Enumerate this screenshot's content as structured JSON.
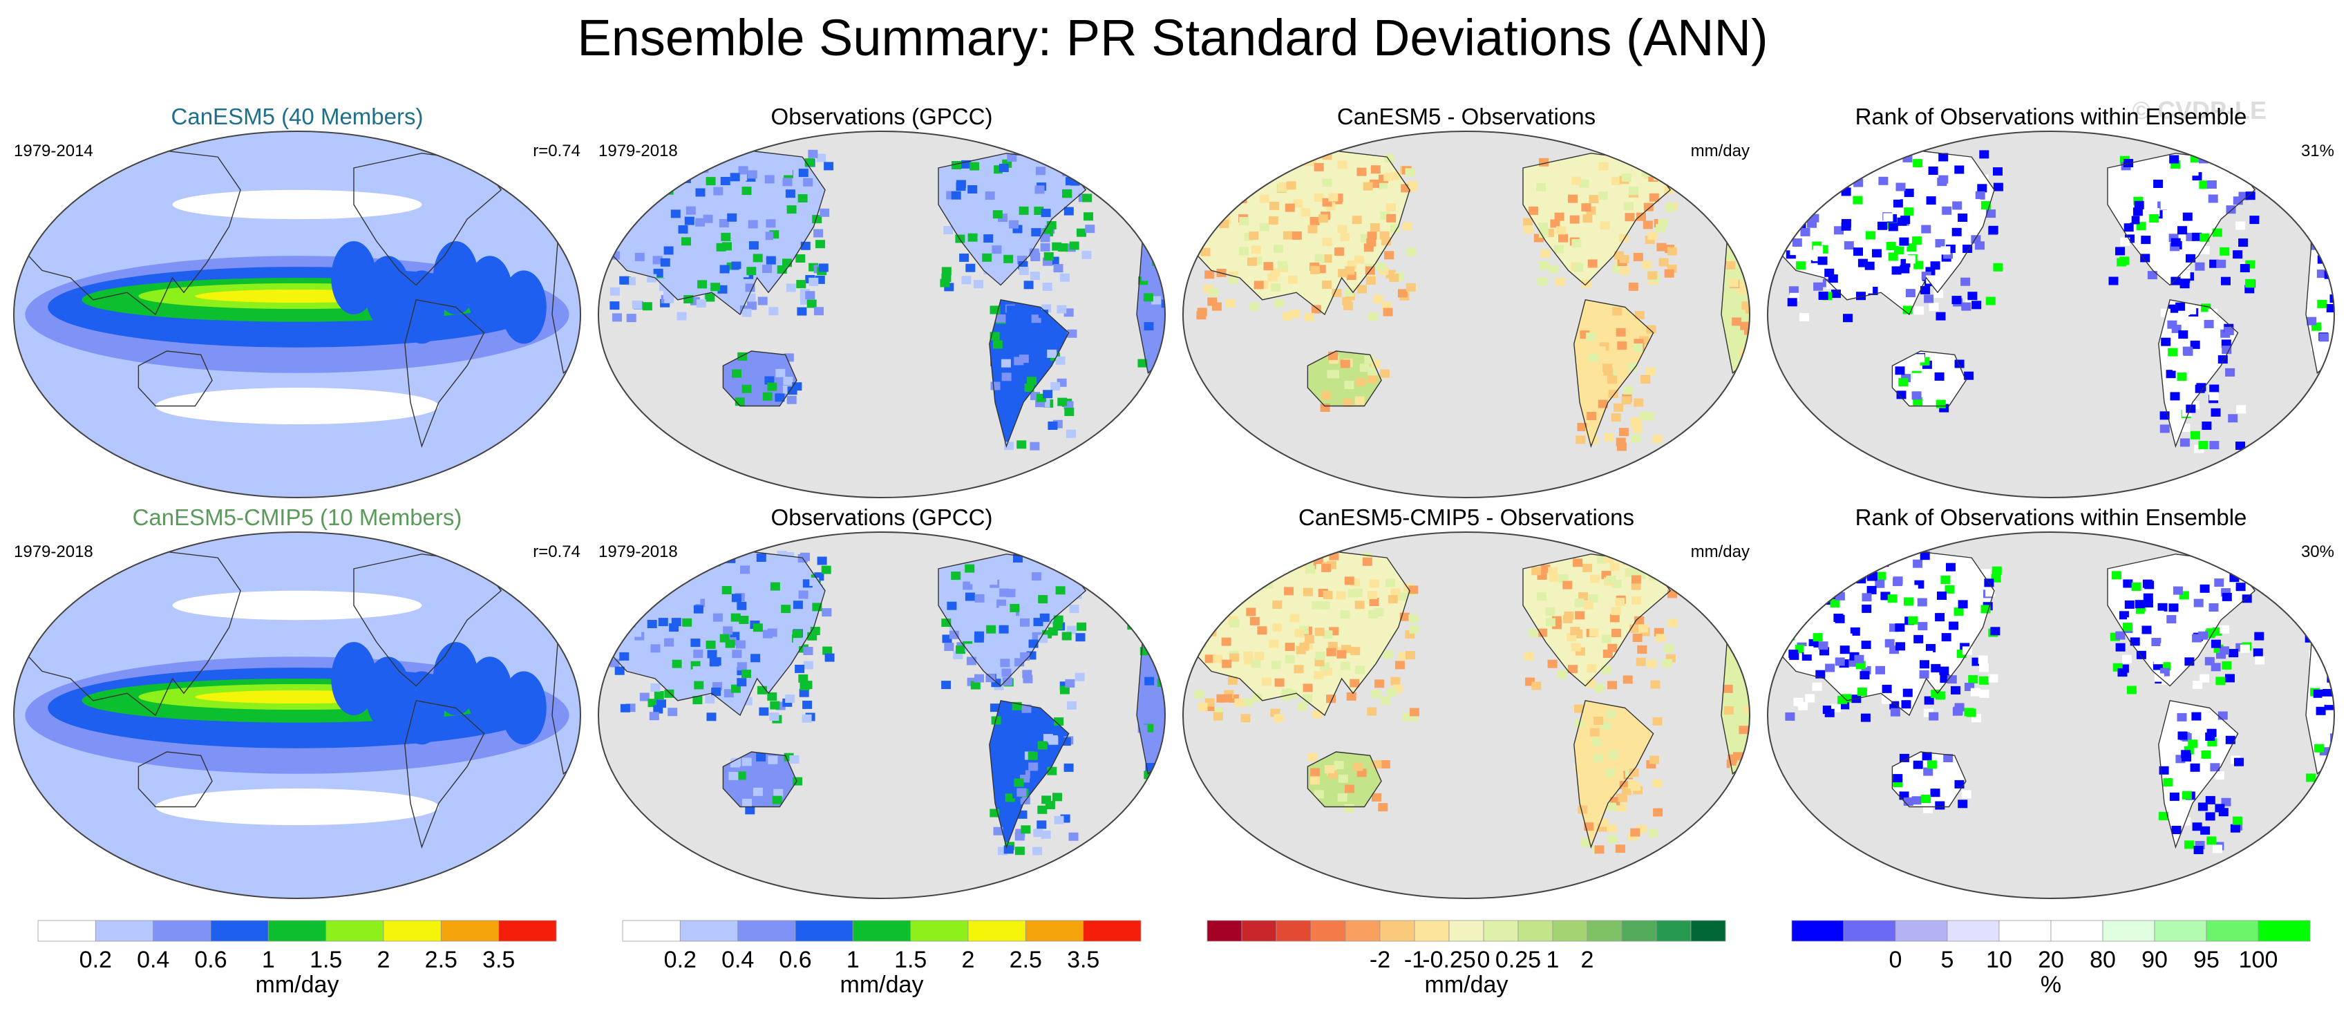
{
  "title": "Ensemble Summary: PR Standard Deviations (ANN)",
  "watermark": "© CVDP-LE",
  "colors": {
    "title_blue": "#1f6f8b",
    "title_green": "#5a9a5a",
    "ocean": "#e3e3e3",
    "land_line": "#333333"
  },
  "panels": [
    {
      "row": 0,
      "col": 0,
      "title": "CanESM5 (40 Members)",
      "title_color": "#1f6f8b",
      "left_label": "1979-2014",
      "right_label": "r=0.74",
      "kind": "model"
    },
    {
      "row": 0,
      "col": 1,
      "title": "Observations (GPCC)",
      "title_color": "#000000",
      "left_label": "1979-2018",
      "right_label": "",
      "kind": "obs"
    },
    {
      "row": 0,
      "col": 2,
      "title": "CanESM5 - Observations",
      "title_color": "#000000",
      "left_label": "",
      "right_label": "mm/day",
      "kind": "diff"
    },
    {
      "row": 0,
      "col": 3,
      "title": "Rank of Observations within Ensemble",
      "title_color": "#000000",
      "left_label": "",
      "right_label": "31%",
      "kind": "rank"
    },
    {
      "row": 1,
      "col": 0,
      "title": "CanESM5-CMIP5 (10 Members)",
      "title_color": "#5a9a5a",
      "left_label": "1979-2018",
      "right_label": "r=0.74",
      "kind": "model"
    },
    {
      "row": 1,
      "col": 1,
      "title": "Observations (GPCC)",
      "title_color": "#000000",
      "left_label": "1979-2018",
      "right_label": "",
      "kind": "obs"
    },
    {
      "row": 1,
      "col": 2,
      "title": "CanESM5-CMIP5 - Observations",
      "title_color": "#000000",
      "left_label": "",
      "right_label": "mm/day",
      "kind": "diff"
    },
    {
      "row": 1,
      "col": 3,
      "title": "Rank of Observations within Ensemble",
      "title_color": "#000000",
      "left_label": "",
      "right_label": "30%",
      "kind": "rank"
    }
  ],
  "chart_data": {
    "type": "heatmap",
    "description_units": "mm/day",
    "colorbars": [
      {
        "id": "std",
        "label": "mm/day",
        "colors": [
          "#ffffff",
          "#b4c8ff",
          "#7e93f5",
          "#1f5ff0",
          "#0bbf2e",
          "#8ef01a",
          "#f5f50a",
          "#f5a30a",
          "#f51e0a"
        ],
        "ticks": [
          "0.2",
          "0.4",
          "0.6",
          "1",
          "1.5",
          "2",
          "2.5",
          "3.5"
        ]
      },
      {
        "id": "std2",
        "label": "mm/day",
        "colors": [
          "#ffffff",
          "#b4c8ff",
          "#7e93f5",
          "#1f5ff0",
          "#0bbf2e",
          "#8ef01a",
          "#f5f50a",
          "#f5a30a",
          "#f51e0a"
        ],
        "ticks": [
          "0.2",
          "0.4",
          "0.6",
          "1",
          "1.5",
          "2",
          "2.5",
          "3.5"
        ]
      },
      {
        "id": "diff",
        "label": "mm/day",
        "colors": [
          "#a50026",
          "#c8262a",
          "#e34a33",
          "#f57a4a",
          "#f9a05e",
          "#fbc97a",
          "#fce59a",
          "#f3f3c0",
          "#dff0a8",
          "#c4e48a",
          "#a4d372",
          "#7fc165",
          "#52ab5a",
          "#289a4f",
          "#006837"
        ],
        "ticks": [
          "-2",
          "-1",
          "-0.25",
          "0",
          "0.25",
          "1",
          "2"
        ]
      },
      {
        "id": "rank",
        "label": "%",
        "colors": [
          "#0000ff",
          "#6a6af5",
          "#b2b2f5",
          "#e0e0ff",
          "#ffffff",
          "#ffffff",
          "#e0ffe0",
          "#b2fcb2",
          "#6af56a",
          "#00ff00"
        ],
        "ticks": [
          "0",
          "5",
          "10",
          "20",
          "80",
          "90",
          "95",
          "100"
        ]
      }
    ],
    "pattern_correlations": [
      0.74,
      0.74
    ],
    "rank_percent_in_tails": [
      31,
      30
    ],
    "periods": {
      "model_row1": "1979-2014",
      "model_row2": "1979-2018",
      "obs": "1979-2018"
    }
  }
}
